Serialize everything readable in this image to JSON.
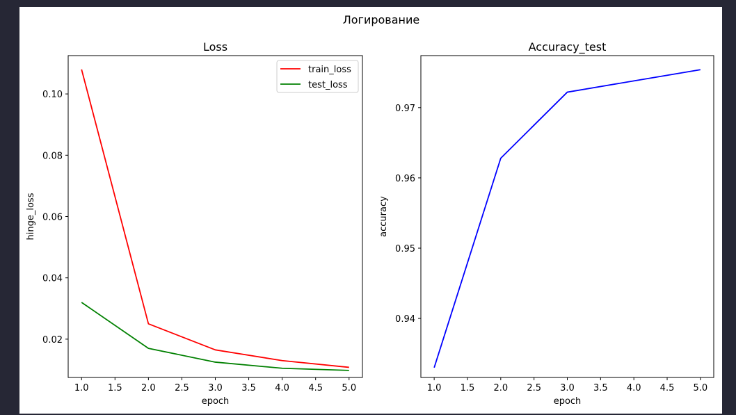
{
  "figure": {
    "suptitle": "Логирование"
  },
  "chart_data": [
    {
      "type": "line",
      "title": "Loss",
      "xlabel": "epoch",
      "ylabel": "hinge_loss",
      "xlim": [
        0.8,
        5.2
      ],
      "ylim": [
        0.0075,
        0.1125
      ],
      "xticks": [
        "1.0",
        "1.5",
        "2.0",
        "2.5",
        "3.0",
        "3.5",
        "4.0",
        "4.5",
        "5.0"
      ],
      "yticks": [
        "0.02",
        "0.04",
        "0.06",
        "0.08",
        "0.10"
      ],
      "legend": "top-right",
      "grid": false,
      "x": [
        1,
        2,
        3,
        4,
        5
      ],
      "series": [
        {
          "name": "train_loss",
          "color": "#ff0000",
          "values": [
            0.108,
            0.025,
            0.0165,
            0.013,
            0.0108
          ]
        },
        {
          "name": "test_loss",
          "color": "#008000",
          "values": [
            0.032,
            0.017,
            0.0125,
            0.0105,
            0.0098
          ]
        }
      ]
    },
    {
      "type": "line",
      "title": "Accuracy_test",
      "xlabel": "epoch",
      "ylabel": "accuracy",
      "xlim": [
        0.8,
        5.2
      ],
      "ylim": [
        0.9316,
        0.9774
      ],
      "xticks": [
        "1.0",
        "1.5",
        "2.0",
        "2.5",
        "3.0",
        "3.5",
        "4.0",
        "4.5",
        "5.0"
      ],
      "yticks": [
        "0.94",
        "0.95",
        "0.96",
        "0.97"
      ],
      "legend": "none",
      "grid": false,
      "x": [
        1,
        2,
        3,
        4,
        5
      ],
      "series": [
        {
          "color": "#0000ff",
          "values": [
            0.933,
            0.9628,
            0.9722,
            0.9738,
            0.9754
          ]
        }
      ]
    }
  ]
}
